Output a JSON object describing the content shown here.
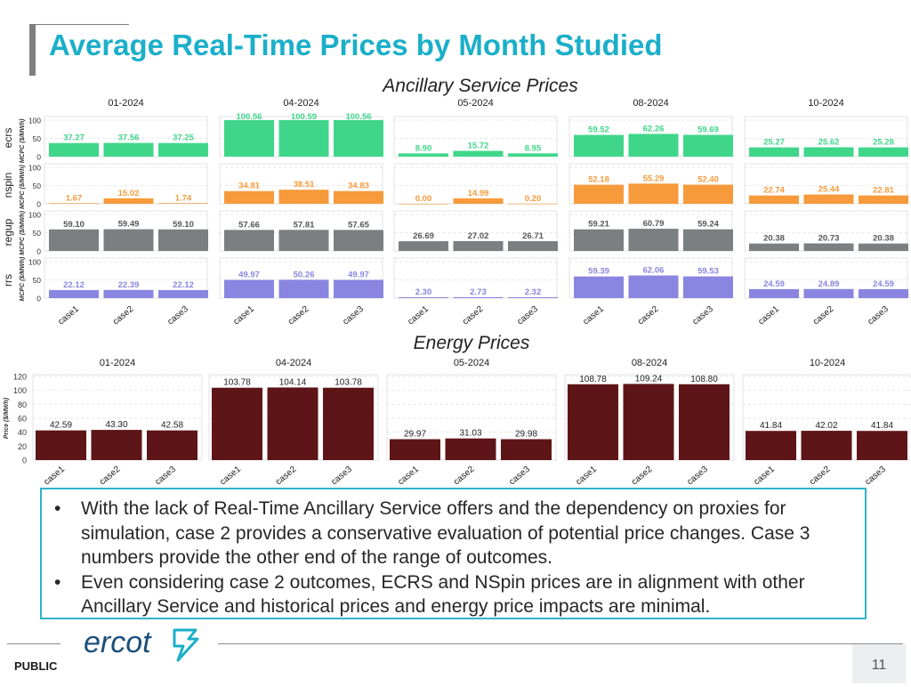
{
  "page": {
    "title": "Average Real-Time Prices by Month Studied",
    "footer_label": "PUBLIC",
    "page_number": "11",
    "logo_text": "ercot"
  },
  "notes": {
    "bullets": [
      "With the lack of Real-Time Ancillary Service offers and the dependency on proxies for simulation, case 2 provides a conservative evaluation of potential price changes.  Case 3 numbers provide the other end of the range of outcomes.",
      "Even considering case 2 outcomes, ECRS and NSpin prices are in alignment with other Ancillary Service and historical prices and energy price impacts are minimal."
    ]
  },
  "chart_data": [
    {
      "type": "bar",
      "title": "Ancillary Service Prices",
      "months": [
        "01-2024",
        "04-2024",
        "05-2024",
        "08-2024",
        "10-2024"
      ],
      "categories": [
        "case1",
        "case2",
        "case3"
      ],
      "ylabel": "MCPC ($/MWh)",
      "ylim": [
        0,
        100
      ],
      "yticks": [
        0,
        50,
        100
      ],
      "rows": [
        {
          "name": "ecrs",
          "color": "#3fd68a",
          "values": [
            [
              37.27,
              37.56,
              37.25
            ],
            [
              100.56,
              100.59,
              100.56
            ],
            [
              8.9,
              15.72,
              8.95
            ],
            [
              59.52,
              62.26,
              59.69
            ],
            [
              25.27,
              25.62,
              25.28
            ]
          ]
        },
        {
          "name": "nspin",
          "color": "#f79a3b",
          "values": [
            [
              1.67,
              15.02,
              1.74
            ],
            [
              34.81,
              38.51,
              34.83
            ],
            [
              0.0,
              14.99,
              0.2
            ],
            [
              52.18,
              55.29,
              52.4
            ],
            [
              22.74,
              25.44,
              22.81
            ]
          ]
        },
        {
          "name": "regup",
          "color": "#7b7f82",
          "values": [
            [
              59.1,
              59.49,
              59.1
            ],
            [
              57.66,
              57.81,
              57.65
            ],
            [
              26.69,
              27.02,
              26.71
            ],
            [
              59.21,
              60.79,
              59.24
            ],
            [
              20.38,
              20.73,
              20.38
            ]
          ]
        },
        {
          "name": "rrs",
          "color": "#8a85e0",
          "values": [
            [
              22.12,
              22.39,
              22.12
            ],
            [
              49.97,
              50.26,
              49.97
            ],
            [
              2.3,
              2.73,
              2.32
            ],
            [
              59.39,
              62.06,
              59.53
            ],
            [
              24.59,
              24.89,
              24.59
            ]
          ]
        }
      ]
    },
    {
      "type": "bar",
      "title": "Energy Prices",
      "months": [
        "01-2024",
        "04-2024",
        "05-2024",
        "08-2024",
        "10-2024"
      ],
      "categories": [
        "case1",
        "case2",
        "case3"
      ],
      "ylabel": "Price ($/MWh)",
      "ylim": [
        0,
        120
      ],
      "yticks": [
        0,
        20,
        40,
        60,
        80,
        100,
        120
      ],
      "color": "#5e1517",
      "values": [
        [
          42.59,
          43.3,
          42.58
        ],
        [
          103.78,
          104.14,
          103.78
        ],
        [
          29.97,
          31.03,
          29.98
        ],
        [
          108.78,
          109.24,
          108.8
        ],
        [
          41.84,
          42.02,
          41.84
        ]
      ]
    }
  ]
}
